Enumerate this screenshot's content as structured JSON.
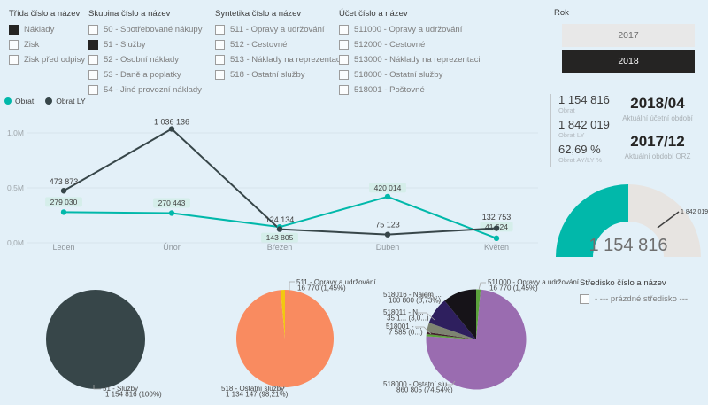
{
  "colors": {
    "background": "#e3f0f8",
    "teal": "#01B8AA",
    "dark_slate": "#374649",
    "orange": "#F98B60",
    "yellow": "#F2C80F",
    "purple": "#9A6CB0",
    "green": "#5BA23C",
    "selected_button": "#252423"
  },
  "slicers": [
    {
      "title": "Třída číslo a název",
      "items": [
        {
          "label": "Náklady",
          "checked": true
        },
        {
          "label": "Zisk",
          "checked": false
        },
        {
          "label": "Zisk před odpisy",
          "checked": false
        }
      ]
    },
    {
      "title": "Skupina číslo a název",
      "items": [
        {
          "label": "50 - Spotřebované nákupy",
          "checked": false
        },
        {
          "label": "51 - Služby",
          "checked": true
        },
        {
          "label": "52 - Osobní náklady",
          "checked": false
        },
        {
          "label": "53 - Daně a poplatky",
          "checked": false
        },
        {
          "label": "54 - Jiné provozní náklady",
          "checked": false
        }
      ]
    },
    {
      "title": "Syntetika číslo a název",
      "items": [
        {
          "label": "511 - Opravy a udržování",
          "checked": false
        },
        {
          "label": "512 - Cestovné",
          "checked": false
        },
        {
          "label": "513 - Náklady na reprezentaci",
          "checked": false
        },
        {
          "label": "518 - Ostatní služby",
          "checked": false
        }
      ]
    },
    {
      "title": "Účet číslo a název",
      "items": [
        {
          "label": "511000 - Opravy a udržování",
          "checked": false
        },
        {
          "label": "512000 - Cestovné",
          "checked": false
        },
        {
          "label": "513000 - Náklady na reprezentaci",
          "checked": false
        },
        {
          "label": "518000 - Ostatní služby",
          "checked": false
        },
        {
          "label": "518001 - Poštovné",
          "checked": false
        }
      ]
    }
  ],
  "year_slicer": {
    "title": "Rok",
    "options": [
      {
        "label": "2017",
        "selected": false
      },
      {
        "label": "2018",
        "selected": true
      }
    ]
  },
  "legend": [
    {
      "label": "Obrat",
      "color": "#01B8AA"
    },
    {
      "label": "Obrat LY",
      "color": "#374649"
    }
  ],
  "kpi": {
    "metrics": [
      {
        "value": "1 154 816",
        "label": "Obrat"
      },
      {
        "value": "1 842 019",
        "label": "Obrat LY"
      },
      {
        "value": "62,69 %",
        "label": "Obrat AY/LY %"
      }
    ],
    "periods": [
      {
        "value": "2018/04",
        "label": "Aktuální účetní období"
      },
      {
        "value": "2017/12",
        "label": "Aktuální období ORZ"
      }
    ]
  },
  "stredisko": {
    "title": "Středisko číslo a název",
    "items": [
      {
        "label": "- --- prázdné středisko ---",
        "checked": false
      }
    ]
  },
  "chart_data": [
    {
      "type": "line",
      "title": "Obrat a Obrat LY podle měsíce",
      "categories": [
        "Leden",
        "Únor",
        "Březen",
        "Duben",
        "Květen"
      ],
      "series": [
        {
          "name": "Obrat",
          "color": "#01B8AA",
          "values": [
            279030,
            270443,
            143805,
            420014,
            41624
          ],
          "labels": [
            "279 030",
            "270 443",
            "143 805",
            "420 014",
            "41 624"
          ],
          "label_style": "pill"
        },
        {
          "name": "Obrat LY",
          "color": "#374649",
          "values": [
            473873,
            1036136,
            124134,
            75123,
            132753
          ],
          "labels": [
            "473 873",
            "1 036 136",
            "124 134",
            "75 123",
            "132 753"
          ],
          "label_style": "plain"
        }
      ],
      "ylim": [
        0,
        1100000
      ],
      "yticks": [
        {
          "value": 0,
          "label": "0,0M"
        },
        {
          "value": 500000,
          "label": "0,5M"
        },
        {
          "value": 1000000,
          "label": "1,0M"
        }
      ],
      "grid": true,
      "legend_position": "top-left"
    },
    {
      "type": "gauge",
      "min": 0,
      "max": 2309632,
      "value": 1154816,
      "value_label": "1 154 816",
      "target": 1842019,
      "target_label": "1 842 019",
      "fill_color": "#01B8AA",
      "track_color": "#e7e4e1"
    },
    {
      "type": "pie",
      "name": "skupina",
      "slices": [
        {
          "label": "51 - Služby",
          "value": 1154816,
          "pct": 100,
          "color": "#374649",
          "label_lines": [
            "51 - Služby",
            "1 154 816 (100%)"
          ]
        }
      ]
    },
    {
      "type": "pie",
      "name": "syntetika",
      "slices": [
        {
          "label": "518 - Ostatní služby",
          "value": 1134147,
          "pct": 98.21,
          "color": "#F98B60",
          "label_lines": [
            "518 - Ostatní služby",
            "1 134 147 (98,21%)"
          ]
        },
        {
          "label": "511 - Opravy a udržování",
          "value": 16770,
          "pct": 1.45,
          "color": "#F2C80F",
          "label_lines": [
            "511 - Opravy a udržování",
            "16 770 (1,45%)"
          ]
        }
      ]
    },
    {
      "type": "pie",
      "name": "ucet",
      "slices": [
        {
          "label": "511000 - Opravy a udržování",
          "value": 16770,
          "pct": 1.45,
          "color": "#5BA23C",
          "label_lines": [
            "511000 - Opravy a udržování",
            "16 770 (1,45%)"
          ]
        },
        {
          "label": "518000 - Ostatní služby",
          "value": 860805,
          "pct": 74.54,
          "color": "#9A6CB0",
          "label_lines": [
            "518000 - Ostatní slu...",
            "860 805 (74,54%)"
          ]
        },
        {
          "label": null,
          "pct": 0.7,
          "color": "#5BA23C"
        },
        {
          "label": "518001",
          "value": 7585,
          "pct": 0.66,
          "color": "#44222B",
          "label_lines": [
            "518001 - ...",
            "7 585 (0...)"
          ]
        },
        {
          "label": "518011",
          "value": 35100,
          "pct": 3.04,
          "color": "#7E8471",
          "label_lines": [
            "518011 - N...",
            "35 1... (3,0...)"
          ]
        },
        {
          "label": "518016 - Nájem",
          "value": 100800,
          "pct": 8.73,
          "color": "#2E1F5E",
          "label_lines": [
            "518016 - Nájem ...",
            "100 800 (8,73%)"
          ]
        },
        {
          "label": null,
          "pct": 10.88,
          "color": "#161318"
        }
      ]
    }
  ]
}
